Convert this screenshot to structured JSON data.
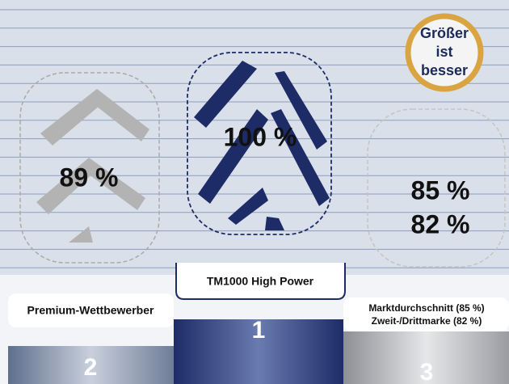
{
  "badge": [
    "Größer",
    "ist",
    "besser"
  ],
  "podium": [
    {
      "rank": "2",
      "label": [
        "Premium-Wettbewerber"
      ],
      "values": [
        "89 %"
      ]
    },
    {
      "rank": "1",
      "label": [
        "TM1000 High Power"
      ],
      "values": [
        "100 %"
      ]
    },
    {
      "rank": "3",
      "label": [
        "Marktdurchschnitt (85 %)",
        "Zweit-/Drittmarke (82 %)"
      ],
      "values": [
        "85 %",
        "82 %"
      ]
    }
  ]
}
